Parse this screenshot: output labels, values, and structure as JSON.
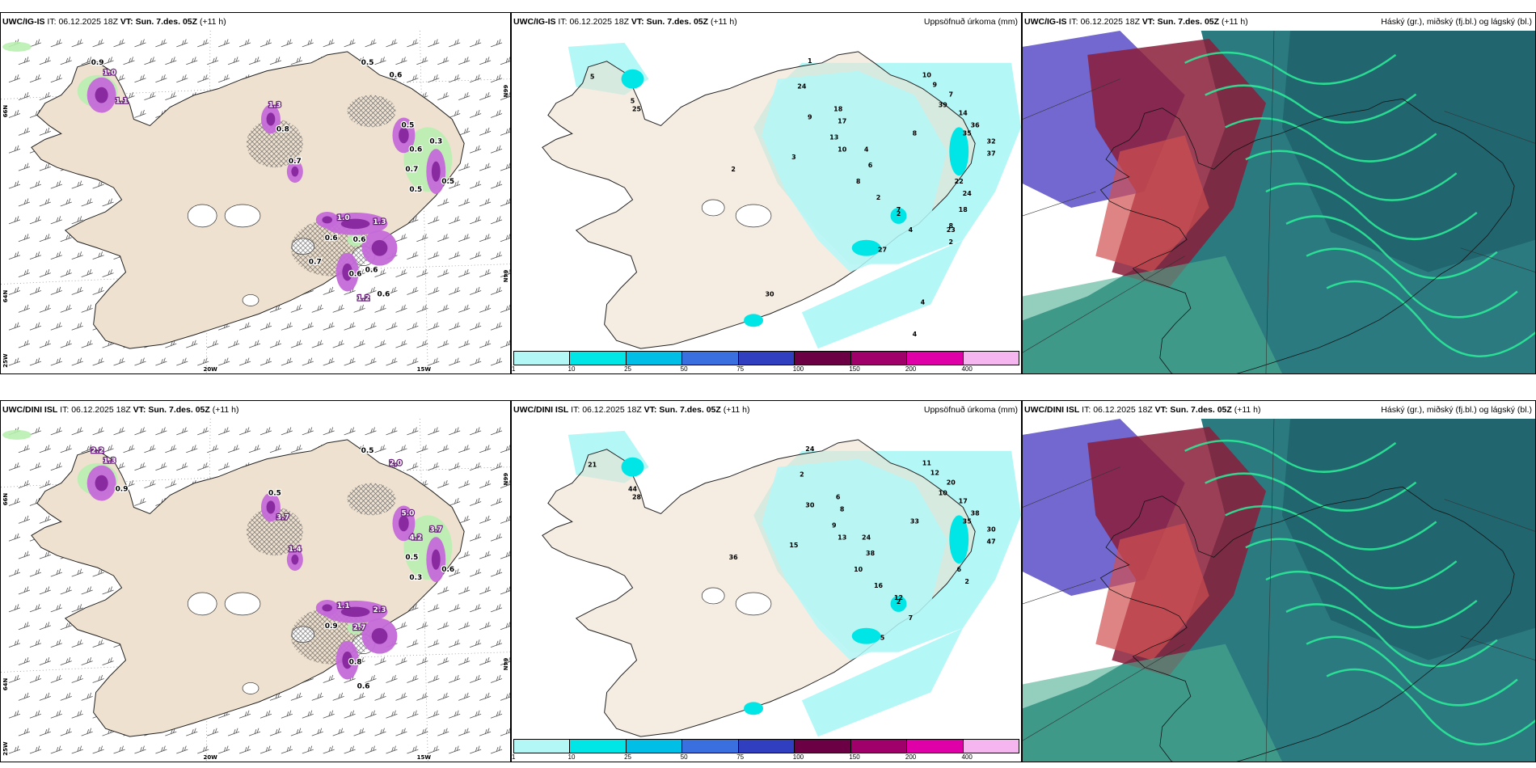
{
  "panels": [
    {
      "id": "p1",
      "type": "symbols",
      "model": "UWC/IG-IS",
      "it_label": "IT:",
      "it": "06.12.2025 18Z",
      "vt_label": "VT:",
      "vt": "Sun. 7.des. 05Z",
      "lead": "(+11 h)",
      "right_title": "",
      "axis": {
        "left_top": "66N",
        "left_bottom": "64N",
        "left_corner": "25W",
        "right_top": "66N",
        "right_bottom": "64N",
        "bottom_a": "20W",
        "bottom_b": "15W"
      },
      "values": [
        "0.9",
        "1.0",
        "1.1",
        "0.5",
        "0.6",
        "0.5",
        "0.3",
        "0.6",
        "0.5",
        "1.0",
        "1.3",
        "0.6",
        "0.6",
        "1.2",
        "1.3",
        "0.8",
        "0.7",
        "0.7",
        "0.5",
        "0.6",
        "0.6",
        "0.7",
        "0.6"
      ]
    },
    {
      "id": "p2",
      "type": "precip",
      "model": "UWC/IG-IS",
      "it_label": "IT:",
      "it": "06.12.2025 18Z",
      "vt_label": "VT:",
      "vt": "Sun. 7.des. 05Z",
      "lead": "(+11 h)",
      "right_title": "Uppsöfnuð úrkoma (mm)",
      "values": [
        "1",
        "24",
        "5",
        "10",
        "9",
        "7",
        "14",
        "39",
        "36",
        "35",
        "32",
        "37",
        "2",
        "5",
        "25",
        "9",
        "18",
        "17",
        "13",
        "10",
        "3",
        "8",
        "2",
        "7",
        "4",
        "6",
        "8",
        "2",
        "4",
        "27",
        "22",
        "24",
        "18",
        "23",
        "2",
        "8",
        "30",
        "4",
        "4",
        "2"
      ]
    },
    {
      "id": "p3",
      "type": "clouds",
      "model": "UWC/IG-IS",
      "it_label": "IT:",
      "it": "06.12.2025 18Z",
      "vt_label": "VT:",
      "vt": "Sun. 7.des. 05Z",
      "lead": "(+11 h)",
      "right_title": "Háský (gr.), miðský (fj.bl.) og lágský (bl.)"
    },
    {
      "id": "p4",
      "type": "symbols",
      "model": "UWC/DINI ISL",
      "it_label": "IT:",
      "it": "06.12.2025 18Z",
      "vt_label": "VT:",
      "vt": "Sun. 7.des. 05Z",
      "lead": "(+11 h)",
      "right_title": "",
      "axis": {
        "left_top": "66N",
        "left_bottom": "64N",
        "left_corner": "25W",
        "right_top": "66N",
        "right_bottom": "64N",
        "bottom_a": "20W",
        "bottom_b": "15W"
      },
      "values": [
        "2.2",
        "1.3",
        "0.9",
        "0.5",
        "2.0",
        "5.0",
        "3.7",
        "4.2",
        "0.6",
        "1.1",
        "2.3",
        "2.7",
        "0.8",
        "0.6",
        "0.5",
        "3.7",
        "1.4",
        "0.5",
        "0.3",
        "0.9"
      ]
    },
    {
      "id": "p5",
      "type": "precip",
      "model": "UWC/DINI ISL",
      "it_label": "IT:",
      "it": "06.12.2025 18Z",
      "vt_label": "VT:",
      "vt": "Sun. 7.des. 05Z",
      "lead": "(+11 h)",
      "right_title": "Uppsöfnuð úrkoma (mm)",
      "values": [
        "24",
        "2",
        "21",
        "11",
        "12",
        "20",
        "17",
        "10",
        "38",
        "35",
        "30",
        "47",
        "36",
        "44",
        "28",
        "30",
        "6",
        "8",
        "9",
        "13",
        "15",
        "10",
        "16",
        "12",
        "24",
        "38",
        "33",
        "2",
        "7",
        "5",
        "6",
        "2"
      ]
    },
    {
      "id": "p6",
      "type": "clouds",
      "model": "UWC/DINI ISL",
      "it_label": "IT:",
      "it": "06.12.2025 18Z",
      "vt_label": "VT:",
      "vt": "Sun. 7.des. 05Z",
      "lead": "(+11 h)",
      "right_title": "Háský (gr.), miðský (fj.bl.) og lágský (bl.)"
    }
  ],
  "colorbar": {
    "ticks": [
      "1",
      "10",
      "25",
      "50",
      "75",
      "100",
      "150",
      "200",
      "400"
    ],
    "colors": [
      "#b3f7f7",
      "#00e5e5",
      "#00bfe6",
      "#3a6fe0",
      "#2f3fc0",
      "#6b0045",
      "#a0006a",
      "#e000a8",
      "#f5b5ee"
    ]
  },
  "colors": {
    "land": "#efe1cf",
    "sea": "#ffffff",
    "precip_light": "#b3f7f7",
    "precip_mid": "#00e5e5",
    "snow": "#c46ad9",
    "snow_dark": "#8a2aa0",
    "rain_green": "#b8f0b0",
    "cloud_low": "#1d6b74",
    "cloud_mid": "#5a4ec7",
    "cloud_high": "#8a1d3a"
  }
}
